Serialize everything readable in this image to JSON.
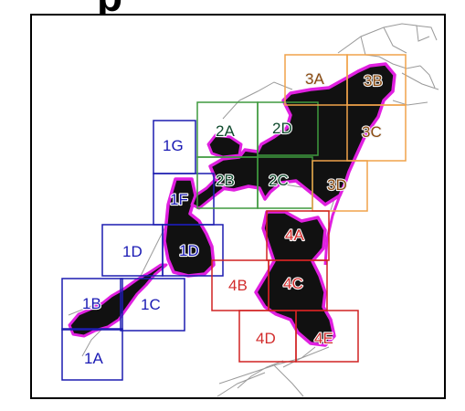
{
  "map": {
    "header_fragment": "p",
    "grid_squares": [
      {
        "id": "1A",
        "group": "blue"
      },
      {
        "id": "1B",
        "group": "blue"
      },
      {
        "id": "1C",
        "group": "blue"
      },
      {
        "id": "1D",
        "group": "blue"
      },
      {
        "id": "1D",
        "group": "blue"
      },
      {
        "id": "1F",
        "group": "blue"
      },
      {
        "id": "1G",
        "group": "blue"
      },
      {
        "id": "2A",
        "group": "green"
      },
      {
        "id": "2B",
        "group": "green"
      },
      {
        "id": "2C",
        "group": "green"
      },
      {
        "id": "2D",
        "group": "green"
      },
      {
        "id": "3A",
        "group": "orange"
      },
      {
        "id": "3B",
        "group": "orange"
      },
      {
        "id": "3C",
        "group": "orange"
      },
      {
        "id": "3D",
        "group": "orange"
      },
      {
        "id": "4A",
        "group": "red",
        "highlighted": true
      },
      {
        "id": "4B",
        "group": "red"
      },
      {
        "id": "4C",
        "group": "red"
      },
      {
        "id": "4D",
        "group": "red"
      },
      {
        "id": "4E",
        "group": "red"
      }
    ],
    "colors": {
      "blue": "#1c1cb0",
      "green": "#3f9a3f",
      "orange": "#f0a24a",
      "red": "#d12222",
      "highlight_fill": "#f3a6a0",
      "boundary": "#e020e0",
      "urban": "#111111",
      "roads": "#9a9a9a"
    }
  }
}
